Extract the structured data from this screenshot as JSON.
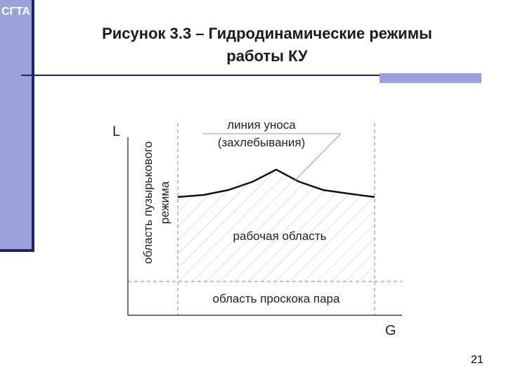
{
  "header": {
    "logo": "СГТА",
    "title_line1": "Рисунок 3.3 – Гидродинамические режимы",
    "title_line2": "работы КУ"
  },
  "diagram": {
    "y_axis": "L",
    "x_axis": "G",
    "entrainment_line_1": "линия уноса",
    "entrainment_line_2": "(захлебывания)",
    "bubble_region_1": "область пузырькового",
    "bubble_region_2": "режима",
    "working_region": "рабочая область",
    "vapor_bypass_region": "область проскока пара"
  },
  "footer": {
    "page_number": "21"
  }
}
